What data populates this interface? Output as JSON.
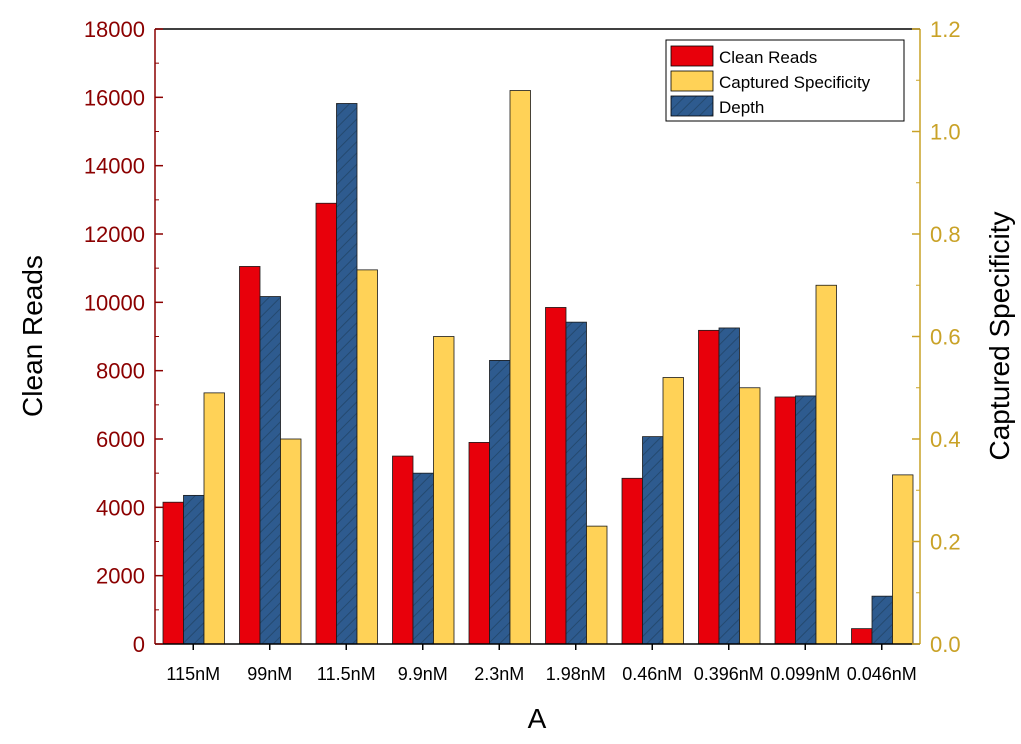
{
  "chart_data": {
    "type": "bar",
    "title": "",
    "xlabel": "A",
    "ylabel": "Clean Reads",
    "y2label": "Captured Specificity",
    "categories": [
      "115nM",
      "99nM",
      "11.5nM",
      "9.9nM",
      "2.3nM",
      "1.98nM",
      "0.46nM",
      "0.396nM",
      "0.099nM",
      "0.046nM"
    ],
    "ylim": [
      0,
      18000
    ],
    "y2lim": [
      0,
      1.2
    ],
    "yticks": [
      "0",
      "2000",
      "4000",
      "6000",
      "8000",
      "10000",
      "12000",
      "14000",
      "16000",
      "18000"
    ],
    "y2ticks": [
      "0.0",
      "0.2",
      "0.4",
      "0.6",
      "0.8",
      "1.0",
      "1.2"
    ],
    "series": [
      {
        "name": "Clean Reads",
        "axis": "left",
        "color": "#e8000b",
        "values": [
          4150,
          11050,
          12900,
          5500,
          5900,
          9850,
          4850,
          9180,
          7230,
          450
        ]
      },
      {
        "name": "Depth",
        "axis": "left",
        "color": "#2e5b8f",
        "values": [
          4350,
          10170,
          15820,
          5000,
          8300,
          9420,
          6070,
          9250,
          7260,
          1400
        ]
      },
      {
        "name": "Captured Specificity",
        "axis": "right",
        "color": "#ffd257",
        "values": [
          0.49,
          0.4,
          0.73,
          0.6,
          1.08,
          0.23,
          0.52,
          0.5,
          0.7,
          0.33
        ]
      }
    ],
    "legend": {
      "position": "top-right",
      "entries": [
        "Clean Reads",
        "Captured Specificity",
        "Depth"
      ]
    }
  },
  "colors": {
    "left_axis": "#8b0000",
    "right_axis": "#c9a227",
    "clean_reads": "#e8000b",
    "captured_specificity": "#ffd257",
    "depth": "#2e5b8f"
  }
}
